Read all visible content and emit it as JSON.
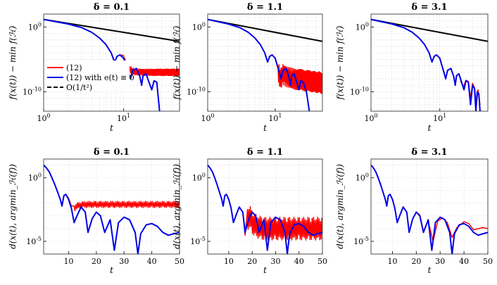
{
  "figure": {
    "colors": {
      "red": "#ff0000",
      "blue": "#0000e6",
      "black": "#000000",
      "grid": "#d9d9d9"
    },
    "legend": {
      "placement": "bottom-left of top-left panel",
      "entries": [
        {
          "label": "(12)",
          "color": "#ff0000",
          "style": "solid"
        },
        {
          "label": "(12) with e(t) ≡ 0",
          "color": "#0000e6",
          "style": "solid"
        },
        {
          "label": "O(1/t²)",
          "color": "#000000",
          "style": "dashed"
        }
      ]
    }
  },
  "chart_data": [
    {
      "type": "line",
      "title": "δ = 0.1",
      "xlabel": "t",
      "ylabel": "f(x(t)) − min f(ℋ)",
      "xscale": "log",
      "yscale": "log",
      "xlim": [
        1,
        50
      ],
      "ylim": [
        1e-13,
        100
      ],
      "xticks": [
        1,
        10
      ],
      "xticklabels": [
        "10^0",
        "10^1"
      ],
      "yticks": [
        1,
        1e-10
      ],
      "yticklabels": [
        "10^0",
        "10^-10"
      ],
      "grid": true,
      "series": [
        {
          "name": "O(1/t²)",
          "color": "#000000",
          "x": [
            1,
            50
          ],
          "y": [
            15,
            0.006
          ]
        },
        {
          "name": "(12) with e(t) ≡ 0",
          "color": "#0000e6",
          "x": [
            1,
            2,
            3,
            4,
            5,
            6,
            7,
            7.7,
            8.3,
            9,
            10,
            11.5,
            12.2,
            13,
            14.5,
            16,
            16.8,
            17.5,
            19,
            21,
            22.5,
            24,
            26,
            28.2
          ],
          "y": [
            15,
            3,
            0.8,
            0.15,
            0.02,
            0.002,
            0.0001,
            4e-06,
            3e-05,
            5e-05,
            1.5e-05,
            1e-07,
            1e-08,
            2e-07,
            4e-07,
            2e-08,
            1e-09,
            3e-08,
            6e-08,
            2e-09,
            2e-10,
            5e-09,
            3e-09,
            1e-13
          ]
        },
        {
          "name": "(12)",
          "color": "#ff0000",
          "x": [
            7,
            7.7,
            8.3,
            9,
            10,
            11,
            12,
            13,
            14,
            16,
            18,
            20,
            22,
            25,
            30,
            35,
            40,
            50
          ],
          "y": [
            0.0001,
            4e-06,
            3e-05,
            5e-05,
            1.5e-05,
            1e-06,
            3e-07,
            1.5e-07,
            1.2e-07,
            1.1e-07,
            1e-07,
            1e-07,
            1e-07,
            1e-07,
            1e-07,
            1e-07,
            1e-07,
            1e-07
          ],
          "oscillation": {
            "from": 10,
            "amplitude_decades": 0.5
          }
        }
      ]
    },
    {
      "type": "line",
      "title": "δ = 1.1",
      "xlabel": "t",
      "ylabel": "f(x(t)) − min f(ℋ)",
      "xscale": "log",
      "yscale": "log",
      "xlim": [
        1,
        50
      ],
      "ylim": [
        1e-13,
        100
      ],
      "xticks": [
        1,
        10
      ],
      "xticklabels": [
        "10^0",
        "10^1"
      ],
      "yticks": [
        1,
        1e-10
      ],
      "yticklabels": [
        "10^0",
        "10^-10"
      ],
      "grid": true,
      "series": [
        {
          "name": "O(1/t²)",
          "color": "#000000",
          "x": [
            1,
            50
          ],
          "y": [
            15,
            0.006
          ]
        },
        {
          "name": "(12) with e(t) ≡ 0",
          "color": "#0000e6",
          "x": [
            1,
            2,
            3,
            4,
            5,
            6,
            7,
            7.7,
            8.3,
            9,
            10,
            11.5,
            12.2,
            13,
            14.5,
            16,
            16.8,
            17.5,
            19,
            21,
            22.5,
            24,
            26,
            29,
            32
          ],
          "y": [
            15,
            3,
            0.8,
            0.15,
            0.02,
            0.002,
            0.0001,
            4e-06,
            3e-05,
            5e-05,
            1.5e-05,
            1e-07,
            1e-08,
            2e-07,
            4e-07,
            2e-08,
            1e-09,
            3e-08,
            6e-08,
            2e-09,
            2e-10,
            5e-09,
            3e-09,
            1e-10,
            1e-13
          ]
        },
        {
          "name": "(12)",
          "color": "#ff0000",
          "x": [
            11,
            12,
            13,
            15,
            18,
            22,
            26,
            30,
            35,
            40,
            45,
            50
          ],
          "y": [
            1e-07,
            1e-08,
            5e-08,
            2e-08,
            1e-08,
            8e-09,
            6e-09,
            5e-09,
            4e-09,
            3e-09,
            3e-09,
            2e-09
          ],
          "oscillation": {
            "from": 11,
            "amplitude_decades": 1.6
          }
        }
      ]
    },
    {
      "type": "line",
      "title": "δ = 3.1",
      "xlabel": "t",
      "ylabel": "f(x(t)) − min f(ℋ)",
      "xscale": "log",
      "yscale": "log",
      "xlim": [
        1,
        50
      ],
      "ylim": [
        1e-13,
        100
      ],
      "xticks": [
        1,
        10
      ],
      "xticklabels": [
        "10^0",
        "10^1"
      ],
      "yticks": [
        1,
        1e-10
      ],
      "yticklabels": [
        "10^0",
        "10^-10"
      ],
      "grid": true,
      "series": [
        {
          "name": "O(1/t²)",
          "color": "#000000",
          "x": [
            1,
            50
          ],
          "y": [
            15,
            0.006
          ]
        },
        {
          "name": "(12) with e(t) ≡ 0",
          "color": "#0000e6",
          "x": [
            1,
            2,
            3,
            4,
            5,
            6,
            7,
            7.7,
            8.3,
            9,
            10,
            11.5,
            12.2,
            13,
            14.5,
            16,
            16.8,
            17.5,
            19,
            21,
            22.5,
            24,
            26,
            28,
            30,
            32,
            33.5,
            35,
            37,
            38.5
          ],
          "y": [
            15,
            3,
            0.8,
            0.15,
            0.02,
            0.002,
            0.0001,
            4e-06,
            3e-05,
            5e-05,
            1.5e-05,
            1e-07,
            1e-08,
            2e-07,
            4e-07,
            2e-08,
            1e-09,
            3e-08,
            6e-08,
            2e-09,
            2e-10,
            5e-09,
            3e-09,
            1e-12,
            1e-09,
            3e-10,
            1e-13,
            1e-10,
            5e-11,
            1e-13
          ]
        },
        {
          "name": "(12)",
          "color": "#ff0000",
          "x": [
            20,
            22,
            24,
            26,
            28,
            30,
            32,
            34,
            36,
            38.5
          ],
          "y": [
            5e-09,
            5e-10,
            6e-09,
            4e-09,
            1e-11,
            2e-09,
            4e-10,
            1e-12,
            2e-10,
            1e-12
          ]
        }
      ]
    },
    {
      "type": "line",
      "title": "δ = 0.1",
      "xlabel": "t",
      "ylabel": "d(x(t), argmin_ℋ(f))",
      "xscale": "linear",
      "yscale": "log",
      "xlim": [
        1,
        50
      ],
      "ylim": [
        1e-06,
        30
      ],
      "xticks": [
        10,
        20,
        30,
        40,
        50
      ],
      "yticks": [
        1,
        1e-05
      ],
      "yticklabels": [
        "10^0",
        "10^-5"
      ],
      "grid": true,
      "series": [
        {
          "name": "(12) with e(t) ≡ 0",
          "color": "#0000e6",
          "x": [
            1,
            2,
            3,
            4,
            5,
            6,
            7,
            7.6,
            8.3,
            9,
            10,
            11,
            12,
            13,
            14.5,
            16,
            17,
            18.5,
            20,
            21.5,
            23,
            25,
            26.5,
            28,
            30,
            32,
            34,
            35,
            36,
            38,
            40,
            42,
            44,
            46,
            48,
            50
          ],
          "y": [
            10,
            6,
            3,
            1,
            0.3,
            0.08,
            0.02,
            0.006,
            0.04,
            0.05,
            0.02,
            0.004,
            0.0003,
            0.001,
            0.005,
            0.002,
            5e-05,
            0.0006,
            0.002,
            0.001,
            5e-05,
            0.0005,
            2e-06,
            0.0003,
            0.0008,
            0.0005,
            5e-05,
            1e-06,
            4e-05,
            0.0002,
            0.00025,
            0.00015,
            5e-05,
            3e-05,
            4e-05,
            5e-05
          ]
        },
        {
          "name": "(12)",
          "color": "#ff0000",
          "x": [
            7,
            7.6,
            8.3,
            9,
            10,
            11,
            12,
            13,
            14,
            16,
            18,
            20,
            25,
            30,
            35,
            40,
            45,
            50
          ],
          "y": [
            0.02,
            0.006,
            0.04,
            0.05,
            0.025,
            0.006,
            0.004,
            0.006,
            0.007,
            0.008,
            0.008,
            0.008,
            0.008,
            0.008,
            0.008,
            0.008,
            0.008,
            0.008
          ],
          "oscillation": {
            "from": 12,
            "amplitude_decades": 0.25
          }
        }
      ]
    },
    {
      "type": "line",
      "title": "δ = 1.1",
      "xlabel": "t",
      "ylabel": "d(x(t), argmin_ℋ(f))",
      "xscale": "linear",
      "yscale": "log",
      "xlim": [
        1,
        50
      ],
      "ylim": [
        1e-06,
        30
      ],
      "xticks": [
        10,
        20,
        30,
        40,
        50
      ],
      "yticks": [
        1,
        1e-05
      ],
      "yticklabels": [
        "10^0",
        "10^-5"
      ],
      "grid": true,
      "series": [
        {
          "name": "(12) with e(t) ≡ 0",
          "color": "#0000e6",
          "x": [
            1,
            2,
            3,
            4,
            5,
            6,
            7,
            7.6,
            8.3,
            9,
            10,
            11,
            12,
            13,
            14.5,
            16,
            17,
            18.5,
            20,
            21.5,
            23,
            25,
            26.5,
            28,
            30,
            32,
            34,
            35,
            36,
            38,
            40,
            42,
            44,
            46,
            48,
            50
          ],
          "y": [
            10,
            6,
            3,
            1,
            0.3,
            0.08,
            0.02,
            0.006,
            0.04,
            0.05,
            0.02,
            0.004,
            0.0003,
            0.001,
            0.005,
            0.002,
            5e-05,
            0.0006,
            0.002,
            0.001,
            5e-05,
            0.0005,
            2e-06,
            0.0003,
            0.0008,
            0.0005,
            5e-05,
            1e-06,
            4e-05,
            0.0002,
            0.00025,
            0.00015,
            5e-05,
            3e-05,
            4e-05,
            5e-05
          ]
        },
        {
          "name": "(12)",
          "color": "#ff0000",
          "x": [
            14.5,
            16,
            17,
            18,
            19,
            20,
            22,
            25,
            30,
            35,
            40,
            45,
            50
          ],
          "y": [
            0.005,
            0.002,
            3e-05,
            0.0006,
            0.0009,
            0.0003,
            0.00015,
            0.0001,
            0.0001,
            0.0001,
            0.0001,
            0.0001,
            0.0001
          ],
          "oscillation": {
            "from": 18,
            "amplitude_decades": 0.9
          }
        }
      ]
    },
    {
      "type": "line",
      "title": "δ = 3.1",
      "xlabel": "t",
      "ylabel": "d(x(t), argmin_ℋ(f))",
      "xscale": "linear",
      "yscale": "log",
      "xlim": [
        1,
        50
      ],
      "ylim": [
        1e-06,
        30
      ],
      "xticks": [
        10,
        20,
        30,
        40,
        50
      ],
      "yticks": [
        1,
        1e-05
      ],
      "yticklabels": [
        "10^0",
        "10^-5"
      ],
      "grid": true,
      "series": [
        {
          "name": "(12) with e(t) ≡ 0",
          "color": "#0000e6",
          "x": [
            1,
            2,
            3,
            4,
            5,
            6,
            7,
            7.6,
            8.3,
            9,
            10,
            11,
            12,
            13,
            14.5,
            16,
            17,
            18.5,
            20,
            21.5,
            23,
            25,
            26.5,
            28,
            30,
            32,
            34,
            35,
            36,
            38,
            40,
            42,
            44,
            46,
            48,
            50
          ],
          "y": [
            10,
            6,
            3,
            1,
            0.3,
            0.08,
            0.02,
            0.006,
            0.04,
            0.05,
            0.02,
            0.004,
            0.0003,
            0.001,
            0.005,
            0.002,
            5e-05,
            0.0006,
            0.002,
            0.001,
            5e-05,
            0.0005,
            2e-06,
            0.0003,
            0.0008,
            0.0005,
            5e-05,
            1e-06,
            4e-05,
            0.0002,
            0.00025,
            0.00015,
            5e-05,
            3e-05,
            4e-05,
            5e-05
          ]
        },
        {
          "name": "(12)",
          "color": "#ff0000",
          "x": [
            20,
            21.5,
            23,
            25,
            27,
            29,
            31,
            33,
            35,
            37,
            40,
            42,
            44,
            46,
            48,
            50
          ],
          "y": [
            0.002,
            0.0012,
            6e-05,
            0.0004,
            1e-05,
            0.0004,
            0.0007,
            0.0003,
            2e-05,
            0.00012,
            0.00035,
            0.00025,
            8e-05,
            0.0001,
            0.00012,
            0.0001
          ]
        }
      ]
    }
  ]
}
